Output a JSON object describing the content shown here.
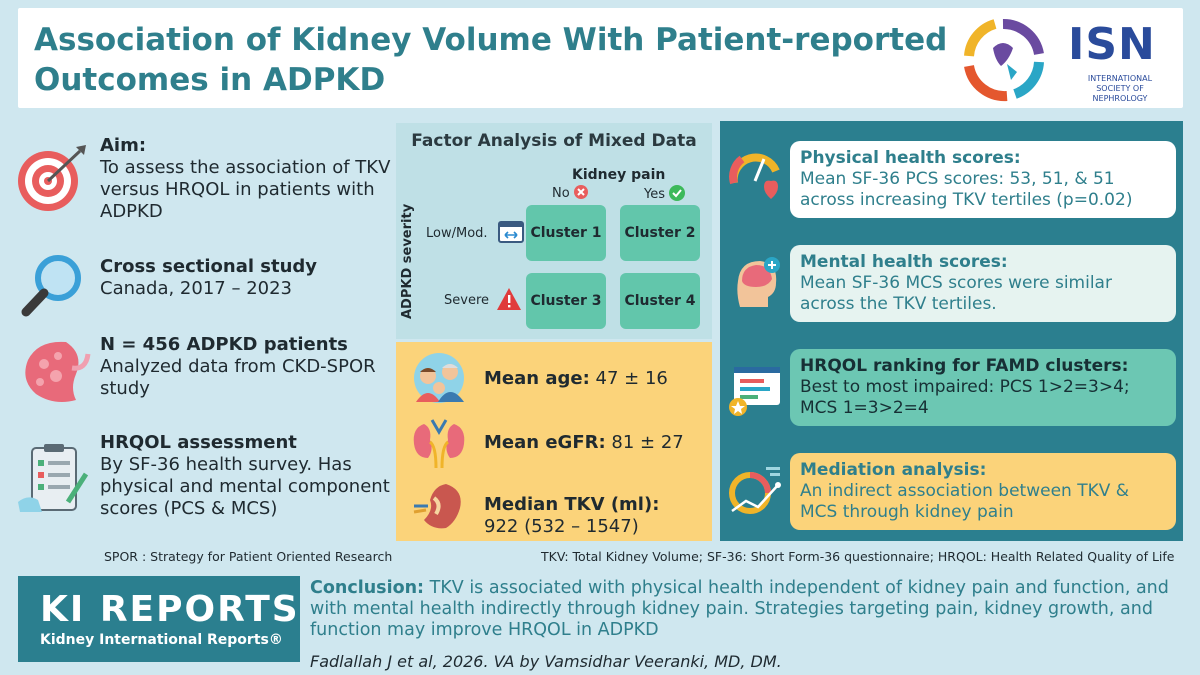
{
  "header": {
    "title": "Association of Kidney Volume With Patient-reported Outcomes in ADPKD",
    "logo_text": "ISN",
    "logo_subtitle": "INTERNATIONAL SOCIETY OF NEPHROLOGY"
  },
  "left": {
    "aim_label": "Aim:",
    "aim_text": "To assess the association of TKV versus HRQOL in patients with ADPKD",
    "study_label": "Cross sectional study",
    "study_text": "Canada, 2017 – 2023",
    "n_label": "N = 456 ADPKD patients",
    "n_text": "Analyzed data from CKD-SPOR study",
    "hrqol_label": "HRQOL assessment",
    "hrqol_text": "By SF-36 health survey. Has physical and mental component scores (PCS & MCS)",
    "icons": [
      "target-icon",
      "magnifier-icon",
      "kidney-icon",
      "clipboard-icon"
    ]
  },
  "famd": {
    "title": "Factor Analysis of Mixed Data",
    "pain_label": "Kidney pain",
    "no_label": "No",
    "yes_label": "Yes",
    "severity_label": "ADPKD severity",
    "low_label": "Low/Mod.",
    "severe_label": "Severe",
    "clusters": [
      "Cluster 1",
      "Cluster 2",
      "Cluster 3",
      "Cluster 4"
    ]
  },
  "stats": {
    "age_label": "Mean age:",
    "age_value": "47 ± 16",
    "egfr_label": "Mean eGFR:",
    "egfr_value": "81 ± 27",
    "tkv_label": "Median TKV (ml):",
    "tkv_value": "922 (532 – 1547)"
  },
  "results": {
    "physical_title": "Physical health scores:",
    "physical_text": "Mean SF-36 PCS scores: 53, 51, & 51 across increasing TKV tertiles (p=0.02)",
    "mental_title": "Mental health scores:",
    "mental_text": "Mean SF-36 MCS scores were similar across the TKV tertiles.",
    "ranking_title": "HRQOL ranking for FAMD clusters:",
    "ranking_text": "Best to most impaired: PCS 1>2=3>4; MCS 1=3>2=4",
    "mediation_title": "Mediation analysis:",
    "mediation_text": "An indirect association between TKV & MCS through kidney pain"
  },
  "footnotes": {
    "spor": "SPOR : Strategy for Patient Oriented Research",
    "abbrev": "TKV: Total Kidney Volume; SF-36: Short Form-36 questionnaire; HRQOL: Health Related Quality of Life"
  },
  "footer": {
    "journal_logo": "KI REPORTS",
    "journal_sub": "Kidney International Reports®",
    "conclusion_label": "Conclusion:",
    "conclusion_text": " TKV is associated with physical health independent of kidney pain and function, and with mental health indirectly through kidney pain. Strategies targeting pain, kidney growth, and function may improve HRQOL in ADPKD",
    "citation": "Fadlallah J et al, 2026. VA by Vamsidhar Veeranki, MD, DM."
  },
  "colors": {
    "teal": "#2b7f8f",
    "title_teal": "#2f7f8c",
    "yellow": "#fbd37a",
    "cluster_green": "#62c6ab",
    "background": "#cfe7ef"
  }
}
